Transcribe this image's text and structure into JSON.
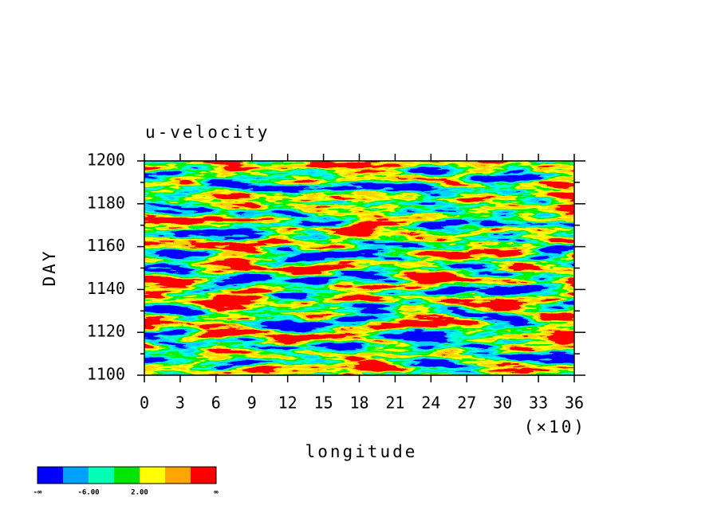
{
  "chart_data": {
    "type": "contour",
    "title": "u-velocity",
    "xlabel": "longitude",
    "ylabel": "DAY",
    "xscale_label": "(×10)",
    "xlim": [
      0,
      36
    ],
    "xticks": [
      0,
      3,
      6,
      9,
      12,
      15,
      18,
      21,
      24,
      27,
      30,
      33,
      36
    ],
    "ylim": [
      1100,
      1200
    ],
    "yticks": [
      1100,
      1120,
      1140,
      1160,
      1180,
      1200
    ],
    "yminor": [
      1110,
      1130,
      1150,
      1170,
      1190
    ],
    "colorbar": {
      "colors": [
        "#0000ff",
        "#00a0ff",
        "#00ffb4",
        "#00e600",
        "#ffff00",
        "#ffa500",
        "#ff0000"
      ],
      "levels": [
        -10,
        -6,
        -2,
        2,
        6,
        10
      ],
      "ticks": [
        {
          "label": "-∞"
        },
        {
          "value": -6,
          "label": "-6.00"
        },
        {
          "value": 2,
          "label": "2.00"
        },
        {
          "label": "∞"
        }
      ]
    }
  }
}
